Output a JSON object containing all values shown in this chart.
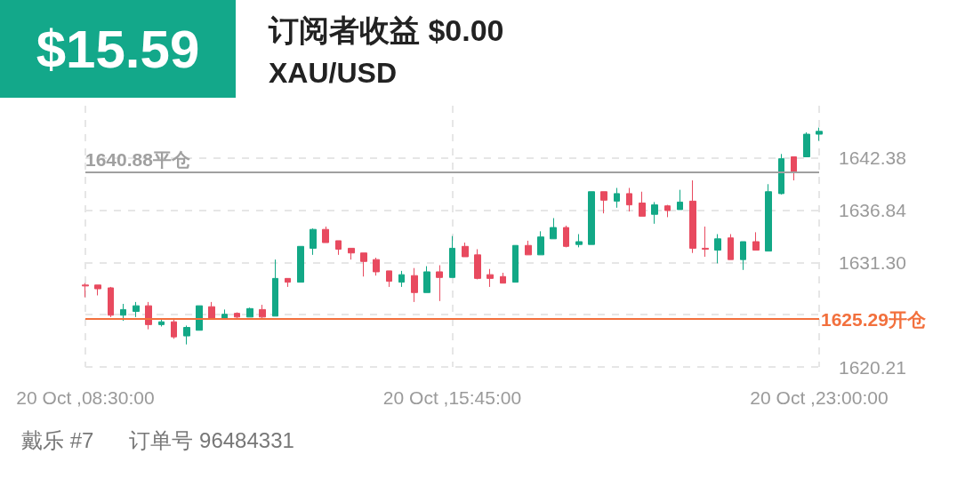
{
  "chart_data": {
    "type": "candlestick",
    "title": "订阅者收益 $0.00",
    "subtitle": "XAU/USD",
    "annotations": [
      "$15.59",
      "戴乐 #7",
      "订单号 96484331"
    ],
    "categories": [
      "20 Oct ,08:30:00",
      null,
      null,
      null,
      null,
      null,
      null,
      null,
      null,
      null,
      null,
      null,
      null,
      null,
      null,
      null,
      null,
      null,
      null,
      null,
      null,
      null,
      null,
      null,
      null,
      null,
      null,
      null,
      null,
      "20 Oct ,15:45:00",
      null,
      null,
      null,
      null,
      null,
      null,
      null,
      null,
      null,
      null,
      null,
      null,
      null,
      null,
      null,
      null,
      null,
      null,
      null,
      null,
      null,
      null,
      null,
      null,
      null,
      null,
      null,
      null,
      "20 Oct ,23:00:00"
    ],
    "ohlc": [
      [
        1628.9,
        1629.1,
        1627.6,
        1628.8
      ],
      [
        1628.9,
        1628.9,
        1627.8,
        1628.5
      ],
      [
        1628.6,
        1628.7,
        1625.5,
        1625.7
      ],
      [
        1625.7,
        1626.9,
        1625.1,
        1626.3
      ],
      [
        1626.1,
        1627.1,
        1625.5,
        1626.7
      ],
      [
        1626.7,
        1627.1,
        1624.2,
        1624.7
      ],
      [
        1624.7,
        1625.2,
        1624.5,
        1625.0
      ],
      [
        1625.0,
        1625.4,
        1623.2,
        1623.4
      ],
      [
        1623.5,
        1624.6,
        1622.6,
        1624.4
      ],
      [
        1624.1,
        1626.7,
        1624.1,
        1626.7
      ],
      [
        1626.6,
        1627.1,
        1625.4,
        1625.4
      ],
      [
        1625.4,
        1626.3,
        1625.4,
        1625.8
      ],
      [
        1625.9,
        1626.0,
        1625.4,
        1625.5
      ],
      [
        1625.5,
        1626.5,
        1625.5,
        1626.4
      ],
      [
        1626.3,
        1626.8,
        1625.4,
        1625.5
      ],
      [
        1625.6,
        1631.6,
        1625.6,
        1629.6
      ],
      [
        1629.6,
        1629.6,
        1628.7,
        1629.2
      ],
      [
        1629.2,
        1633.0,
        1629.2,
        1633.0
      ],
      [
        1632.8,
        1634.9,
        1632.1,
        1634.8
      ],
      [
        1634.8,
        1635.1,
        1633.4,
        1633.4
      ],
      [
        1633.6,
        1633.6,
        1632.1,
        1632.7
      ],
      [
        1632.8,
        1632.8,
        1631.6,
        1632.3
      ],
      [
        1632.3,
        1632.3,
        1629.8,
        1631.4
      ],
      [
        1631.6,
        1631.8,
        1629.9,
        1630.3
      ],
      [
        1630.4,
        1630.4,
        1628.7,
        1629.3
      ],
      [
        1629.2,
        1630.4,
        1628.7,
        1630.0
      ],
      [
        1629.9,
        1630.7,
        1627.1,
        1628.1
      ],
      [
        1628.1,
        1630.9,
        1628.1,
        1630.3
      ],
      [
        1630.3,
        1631.0,
        1627.2,
        1629.7
      ],
      [
        1629.7,
        1634.1,
        1629.7,
        1632.8
      ],
      [
        1633.0,
        1633.4,
        1631.9,
        1631.9
      ],
      [
        1632.1,
        1632.7,
        1629.5,
        1629.6
      ],
      [
        1630.0,
        1630.6,
        1628.7,
        1629.6
      ],
      [
        1629.8,
        1630.2,
        1629.1,
        1629.1
      ],
      [
        1629.2,
        1633.1,
        1629.2,
        1633.1
      ],
      [
        1633.1,
        1633.6,
        1632.1,
        1632.1
      ],
      [
        1632.1,
        1634.6,
        1632.1,
        1634.0
      ],
      [
        1633.8,
        1636.0,
        1633.8,
        1635.0
      ],
      [
        1635.0,
        1635.2,
        1632.9,
        1633.0
      ],
      [
        1633.2,
        1634.3,
        1632.9,
        1633.5
      ],
      [
        1633.2,
        1638.8,
        1633.2,
        1638.8
      ],
      [
        1638.8,
        1638.8,
        1636.5,
        1637.9
      ],
      [
        1637.8,
        1639.2,
        1637.1,
        1638.6
      ],
      [
        1638.6,
        1639.2,
        1636.7,
        1637.4
      ],
      [
        1637.6,
        1638.8,
        1636.2,
        1636.2
      ],
      [
        1636.4,
        1637.7,
        1635.4,
        1637.4
      ],
      [
        1637.3,
        1637.4,
        1636.1,
        1636.8
      ],
      [
        1636.9,
        1639.0,
        1636.9,
        1637.7
      ],
      [
        1637.8,
        1640.0,
        1632.3,
        1632.8
      ],
      [
        1632.8,
        1635.1,
        1631.9,
        1632.7
      ],
      [
        1632.6,
        1634.3,
        1631.2,
        1633.8
      ],
      [
        1633.9,
        1634.3,
        1631.6,
        1631.6
      ],
      [
        1631.6,
        1633.5,
        1630.5,
        1633.5
      ],
      [
        1633.5,
        1634.5,
        1632.6,
        1632.6
      ],
      [
        1632.5,
        1639.6,
        1632.5,
        1638.8
      ],
      [
        1638.6,
        1642.8,
        1638.5,
        1642.3
      ],
      [
        1642.5,
        1642.5,
        1640.0,
        1640.9
      ],
      [
        1642.5,
        1645.1,
        1642.5,
        1644.9
      ],
      [
        1644.9,
        1645.6,
        1644.2,
        1645.2
      ]
    ],
    "colors": [
      "#e84a5f",
      "#e84a5f",
      "#e84a5f",
      "#12a886",
      "#12a886",
      "#e84a5f",
      "#12a886",
      "#e84a5f",
      "#12a886",
      "#12a886",
      "#e84a5f",
      "#12a886",
      "#e84a5f",
      "#12a886",
      "#e84a5f",
      "#12a886",
      "#e84a5f",
      "#12a886",
      "#12a886",
      "#e84a5f",
      "#e84a5f",
      "#e84a5f",
      "#e84a5f",
      "#e84a5f",
      "#e84a5f",
      "#12a886",
      "#e84a5f",
      "#12a886",
      "#e84a5f",
      "#12a886",
      "#e84a5f",
      "#e84a5f",
      "#e84a5f",
      "#e84a5f",
      "#12a886",
      "#e84a5f",
      "#12a886",
      "#12a886",
      "#e84a5f",
      "#12a886",
      "#12a886",
      "#e84a5f",
      "#12a886",
      "#e84a5f",
      "#e84a5f",
      "#12a886",
      "#e84a5f",
      "#12a886",
      "#e84a5f",
      "#e84a5f",
      "#12a886",
      "#e84a5f",
      "#12a886",
      "#e84a5f",
      "#12a886",
      "#12a886",
      "#e84a5f",
      "#12a886",
      "#12a886"
    ],
    "ylim": [
      1620.21,
      1647.92
    ],
    "yticks": [
      1620.21,
      {
        "value": 1625.75,
        "label": null
      },
      {
        "value": 1631.3,
        "label": "1631.30"
      },
      1636.84,
      1642.38
    ],
    "ref_lines": [
      {
        "axis": "y",
        "value": 1640.88,
        "label": "1640.88平仓",
        "color": "#a0a0a0"
      },
      {
        "axis": "y",
        "value": 1625.29,
        "label": "1625.29开仓",
        "color": "#f2703d"
      }
    ],
    "grid": true
  }
}
